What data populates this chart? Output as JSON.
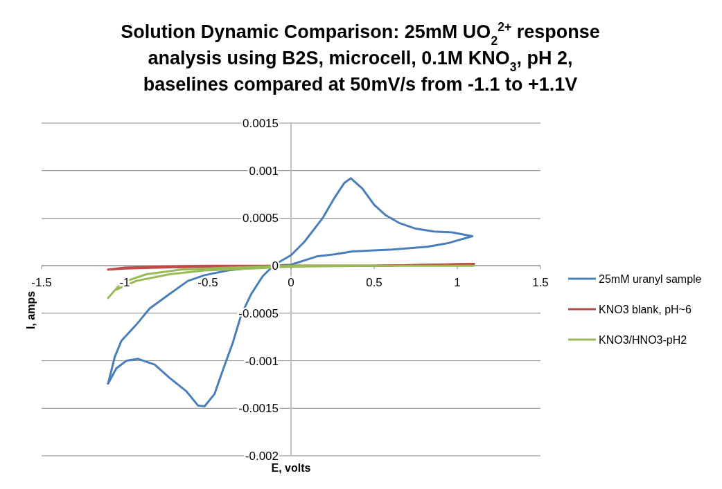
{
  "chart_data": {
    "type": "line",
    "title": "Solution Dynamic Comparison: 25mM UO$_{2}$$^{2+}$ response analysis using B2S, microcell, 0.1M KNO$_{3}$, pH 2, baselines compared at 50mV/s from -1.1 to +1.1V",
    "xlabel": "E, volts",
    "ylabel": "I, amps",
    "xlim": [
      -1.5,
      1.5
    ],
    "xticks": [
      -1.5,
      -1,
      -0.5,
      0,
      0.5,
      1,
      1.5
    ],
    "ylim": [
      -0.002,
      0.0015
    ],
    "yticks": [
      -0.002,
      -0.0015,
      -0.001,
      -0.0005,
      0,
      0.0005,
      0.001,
      0.0015
    ],
    "grid": "y",
    "legend": "right",
    "marker": "none",
    "line_style": "solid",
    "series": [
      {
        "name": "25mM uranyl sample",
        "color": "#4a7ebb",
        "x": [
          -1.1,
          -1.06,
          -1.02,
          -0.93,
          -0.85,
          -0.74,
          -0.62,
          -0.52,
          -0.38,
          -0.24,
          -0.12,
          0,
          0.16,
          0.26,
          0.37,
          0.61,
          0.82,
          0.95,
          1.09
        ],
        "values": [
          -0.00124,
          -0.00096,
          -0.00079,
          -0.00062,
          -0.00045,
          -0.00031,
          -0.00016,
          -0.0001,
          -5e-05,
          -2e-05,
          0,
          1e-05,
          0.0001,
          0.00012,
          0.00015,
          0.00017,
          0.0002,
          0.00024,
          0.00031
        ]
      },
      {
        "color": "#4a7ebb",
        "x": [
          1.09,
          0.97,
          0.86,
          0.75,
          0.65,
          0.57,
          0.5,
          0.43,
          0.36,
          0.32,
          0.26,
          0.19,
          0.08,
          0,
          -0.1,
          -0.17,
          -0.24,
          -0.3,
          -0.35,
          -0.41,
          -0.46,
          -0.52,
          -0.56,
          -0.63,
          -0.73,
          -0.82,
          -0.92,
          -0.99,
          -1.05,
          -1.1
        ],
        "values": [
          0.00031,
          0.00035,
          0.00036,
          0.00039,
          0.00045,
          0.00053,
          0.00064,
          0.00081,
          0.00092,
          0.00087,
          0.00071,
          0.0005,
          0.00025,
          0.00011,
          1e-05,
          -0.00011,
          -0.0003,
          -0.00052,
          -0.00081,
          -0.0011,
          -0.00135,
          -0.00148,
          -0.00147,
          -0.00132,
          -0.00118,
          -0.00104,
          -0.00098,
          -0.001,
          -0.00108,
          -0.00124
        ]
      },
      {
        "name": "KNO3 blank, pH~6",
        "color": "#be4b48",
        "x": [
          -1.1,
          -1,
          -0.8,
          -0.5,
          0,
          0.5,
          0.9,
          1.1
        ],
        "values": [
          -4e-05,
          -2e-05,
          -1e-05,
          0,
          0,
          0,
          1e-05,
          2e-05
        ]
      },
      {
        "color": "#be4b48",
        "x": [
          1.1,
          0.5,
          0,
          -0.5,
          -0.8,
          -1,
          -1.1
        ],
        "values": [
          2e-05,
          0,
          0,
          -1e-05,
          -2e-05,
          -3e-05,
          -4e-05
        ]
      },
      {
        "name": "KNO3/HNO3-pH2",
        "color": "#98b954",
        "x": [
          -1.1,
          -1.02,
          -0.87,
          -0.66,
          -0.38,
          0,
          0.5,
          1.1
        ],
        "values": [
          -0.00034,
          -0.00018,
          -9e-05,
          -4e-05,
          -2e-05,
          0,
          0,
          0
        ]
      },
      {
        "color": "#98b954",
        "x": [
          0.5,
          0,
          -0.24,
          -0.52,
          -0.73,
          -0.93,
          -1.05
        ],
        "values": [
          0,
          -1e-05,
          -3e-05,
          -5e-05,
          -9e-05,
          -0.00016,
          -0.00025
        ]
      }
    ]
  }
}
